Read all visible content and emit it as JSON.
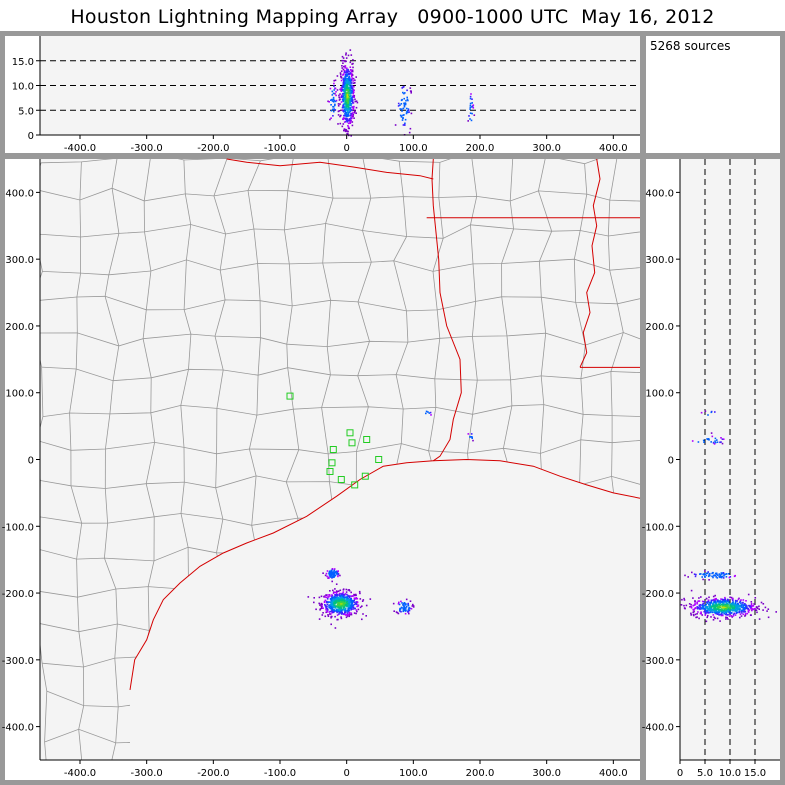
{
  "title": "Houston Lightning Mapping Array   0900-1000 UTC  May 16, 2012",
  "source_count_text": "5268 sources",
  "colors": {
    "border": "#999999",
    "panel": "#f4f4f4",
    "county": "#999999",
    "state": "#d40000",
    "station": "#22cc22"
  },
  "chart_data": [
    {
      "type": "scatter",
      "name": "plan-view",
      "xlim": [
        -460,
        440
      ],
      "ylim": [
        -450,
        450
      ],
      "x_ticks": [
        -400,
        -300,
        -200,
        -100,
        0,
        100,
        200,
        300,
        400
      ],
      "x_tick_labels": [
        "-400.0",
        "-300.0",
        "-200.0",
        "-100.0",
        "0",
        "100.0",
        "200.0",
        "300.0",
        "400.0"
      ],
      "y_ticks": [
        400,
        300,
        200,
        100,
        0,
        -100,
        -200,
        -300,
        -400
      ],
      "y_tick_labels": [
        "400.0",
        "300.0",
        "200.0",
        "100.0",
        "0",
        "-100.0",
        "-200.0",
        "-300.0",
        "-400.0"
      ],
      "stations": [
        [
          -85,
          95
        ],
        [
          -20,
          15
        ],
        [
          8,
          25
        ],
        [
          5,
          40
        ],
        [
          30,
          30
        ],
        [
          48,
          0
        ],
        [
          -22,
          -5
        ],
        [
          -25,
          -18
        ],
        [
          -8,
          -30
        ],
        [
          12,
          -38
        ],
        [
          28,
          -25
        ]
      ],
      "clusters": [
        {
          "x": -10,
          "y": -215,
          "sx": 14,
          "sy": 9,
          "n": 620
        },
        {
          "x": -22,
          "y": -170,
          "sx": 5,
          "sy": 4,
          "n": 80
        },
        {
          "x": 85,
          "y": -220,
          "sx": 6,
          "sy": 5,
          "n": 70
        },
        {
          "x": 120,
          "y": 70,
          "sx": 3,
          "sy": 3,
          "n": 6
        },
        {
          "x": 185,
          "y": 35,
          "sx": 3,
          "sy": 3,
          "n": 8
        }
      ]
    },
    {
      "type": "scatter",
      "name": "x-altitude",
      "xlim": [
        -460,
        440
      ],
      "ylim": [
        0,
        20
      ],
      "x_ticks": [
        -400,
        -300,
        -200,
        -100,
        0,
        100,
        200,
        300,
        400
      ],
      "x_tick_labels": [
        "-400.0",
        "-300.0",
        "-200.0",
        "-100.0",
        "0",
        "100.0",
        "200.0",
        "300.0",
        "400.0"
      ],
      "y_ticks": [
        0,
        5,
        10,
        15
      ],
      "y_tick_labels": [
        "0",
        "5.0",
        "10.0",
        "15.0"
      ],
      "dashed_levels": [
        5,
        10,
        15
      ],
      "clusters": [
        {
          "x": 0,
          "y": 8,
          "sx": 5,
          "sy": 3.2,
          "n": 650
        },
        {
          "x": 85,
          "y": 6,
          "sx": 5,
          "sy": 2.5,
          "n": 60
        },
        {
          "x": -22,
          "y": 7,
          "sx": 3,
          "sy": 2,
          "n": 40
        },
        {
          "x": 185,
          "y": 5,
          "sx": 2,
          "sy": 2,
          "n": 20
        }
      ]
    },
    {
      "type": "scatter",
      "name": "altitude-y",
      "xlim": [
        0,
        20
      ],
      "ylim": [
        -450,
        450
      ],
      "x_ticks": [
        0,
        5,
        10,
        15
      ],
      "x_tick_labels": [
        "0",
        "5.0",
        "10.0",
        "15.0"
      ],
      "y_ticks": [
        400,
        300,
        200,
        100,
        0,
        -100,
        -200,
        -300,
        -400
      ],
      "y_tick_labels": [
        "400.0",
        "300.0",
        "200.0",
        "100.0",
        "0",
        "-100.0",
        "-200.0",
        "-300.0",
        "-400.0"
      ],
      "dashed_levels": [
        5,
        10,
        15
      ],
      "clusters": [
        {
          "x": 8.5,
          "y": -220,
          "sx": 3.2,
          "sy": 7,
          "n": 650
        },
        {
          "x": 6.5,
          "y": -172,
          "sx": 2.5,
          "sy": 3,
          "n": 70
        },
        {
          "x": 5.5,
          "y": 30,
          "sx": 1.8,
          "sy": 3,
          "n": 25
        },
        {
          "x": 6,
          "y": 70,
          "sx": 1,
          "sy": 2,
          "n": 6
        }
      ]
    }
  ]
}
